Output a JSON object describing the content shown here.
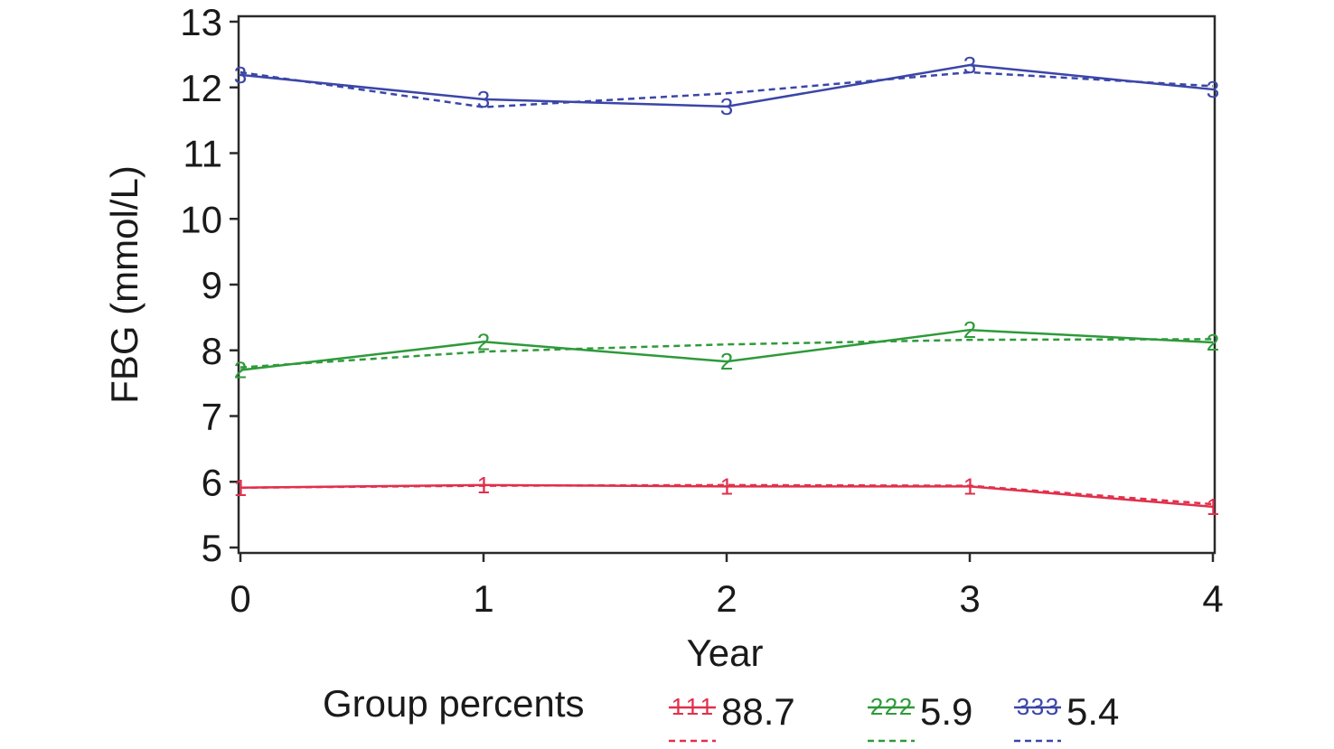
{
  "chart_data": {
    "type": "line",
    "xlabel": "Year",
    "ylabel": "FBG (mmol/L)",
    "x": [
      0,
      1,
      2,
      3,
      4
    ],
    "x_ticks": [
      "0",
      "1",
      "2",
      "3",
      "4"
    ],
    "y_ticks": [
      "5",
      "6",
      "7",
      "8",
      "9",
      "10",
      "11",
      "12",
      "13"
    ],
    "xlim": [
      0,
      4
    ],
    "ylim": [
      5,
      13
    ],
    "grid": false,
    "legend_title": "Group percents",
    "legend_position": "bottom",
    "series": [
      {
        "name": "88.7",
        "marker": "1",
        "color": "#e0304c",
        "observed": [
          5.91,
          5.95,
          5.93,
          5.93,
          5.62
        ],
        "estimated": [
          5.91,
          5.94,
          5.95,
          5.94,
          5.66
        ]
      },
      {
        "name": "5.9",
        "marker": "2",
        "color": "#2e9a3a",
        "observed": [
          7.7,
          8.13,
          7.83,
          8.31,
          8.12
        ],
        "estimated": [
          7.74,
          7.98,
          8.09,
          8.16,
          8.17
        ]
      },
      {
        "name": "5.4",
        "marker": "3",
        "color": "#3b46a8",
        "observed": [
          12.19,
          11.82,
          11.71,
          12.34,
          11.97
        ],
        "estimated": [
          12.23,
          11.7,
          11.91,
          12.23,
          12.02
        ]
      }
    ]
  }
}
